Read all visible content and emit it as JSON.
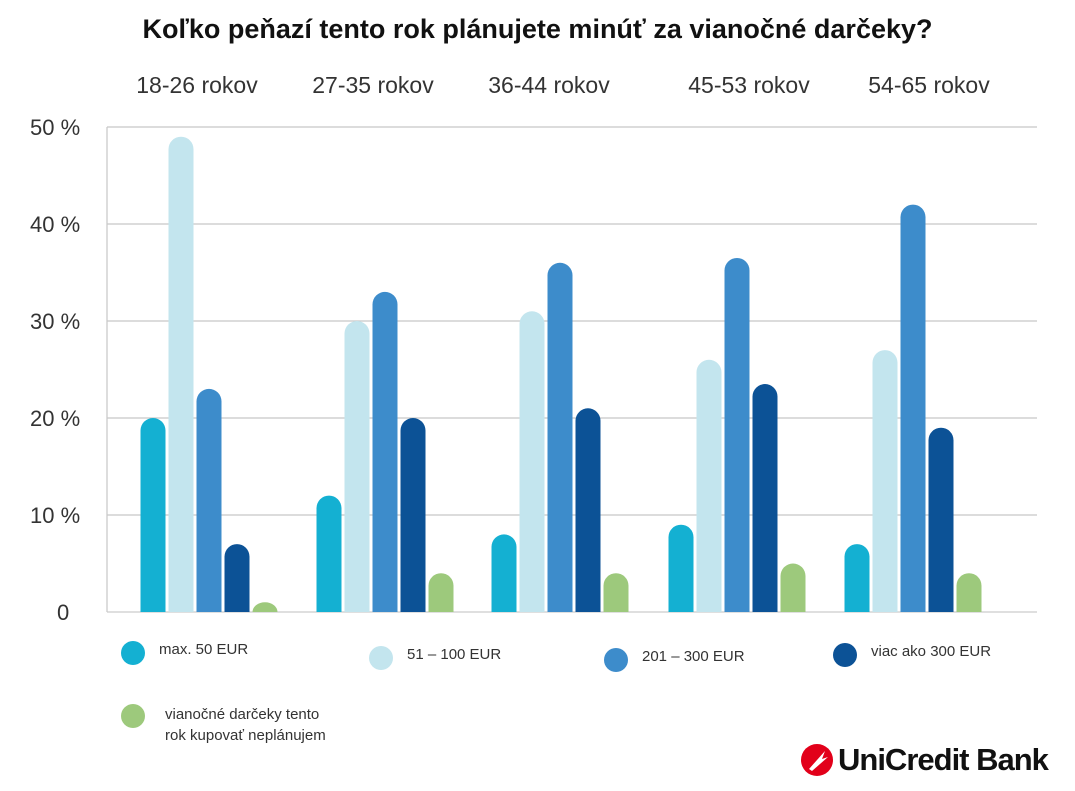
{
  "chart_data": {
    "type": "bar",
    "title": "Koľko peňazí tento rok plánujete minúť za vianočné darčeky?",
    "categories": [
      "18-26 rokov",
      "27-35 rokov",
      "36-44 rokov",
      "45-53 rokov",
      "54-65 rokov"
    ],
    "yticks": [
      "0",
      "10 %",
      "20 %",
      "30 %",
      "40 %",
      "50 %"
    ],
    "ylim": [
      0,
      50
    ],
    "xlabel": "",
    "ylabel": "",
    "grid": true,
    "legend_position": "bottom",
    "series": [
      {
        "name": "max. 50 EUR",
        "color": "#14b0d2",
        "values": [
          20,
          12,
          8,
          9,
          7
        ]
      },
      {
        "name": "51 – 100 EUR",
        "color": "#c3e5ee",
        "values": [
          49,
          30,
          31,
          26,
          27
        ]
      },
      {
        "name": "201 – 300 EUR",
        "color": "#3d8ccb",
        "values": [
          23,
          33,
          36,
          36.5,
          42
        ]
      },
      {
        "name": "viac ako 300 EUR",
        "color": "#0c5296",
        "values": [
          7,
          20,
          21,
          23.5,
          19
        ]
      },
      {
        "name": "vianočné darčeky tento rok kupovať neplánujem",
        "name_line1": "vianočné darčeky tento",
        "name_line2": "rok kupovať neplánujem",
        "color": "#9dc97c",
        "values": [
          1,
          4,
          4,
          5,
          4
        ]
      }
    ]
  },
  "brand": {
    "name": "UniCredit Bank",
    "color": "#e2001a"
  }
}
